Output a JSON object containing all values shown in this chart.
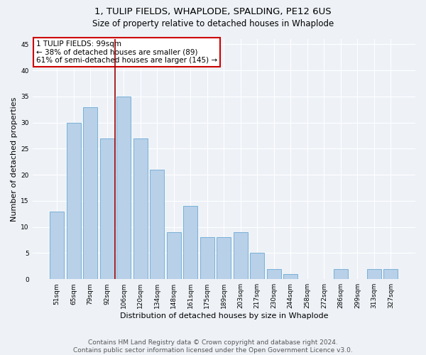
{
  "title1": "1, TULIP FIELDS, WHAPLODE, SPALDING, PE12 6US",
  "title2": "Size of property relative to detached houses in Whaplode",
  "xlabel": "Distribution of detached houses by size in Whaplode",
  "ylabel": "Number of detached properties",
  "categories": [
    "51sqm",
    "65sqm",
    "79sqm",
    "92sqm",
    "106sqm",
    "120sqm",
    "134sqm",
    "148sqm",
    "161sqm",
    "175sqm",
    "189sqm",
    "203sqm",
    "217sqm",
    "230sqm",
    "244sqm",
    "258sqm",
    "272sqm",
    "286sqm",
    "299sqm",
    "313sqm",
    "327sqm"
  ],
  "values": [
    13,
    30,
    33,
    27,
    35,
    27,
    21,
    9,
    14,
    8,
    8,
    9,
    5,
    2,
    1,
    0,
    0,
    2,
    0,
    2,
    2
  ],
  "bar_color": "#b8d0e8",
  "bar_edge_color": "#6aaad4",
  "vline_color": "#990000",
  "annotation_text": "1 TULIP FIELDS: 99sqm\n← 38% of detached houses are smaller (89)\n61% of semi-detached houses are larger (145) →",
  "annotation_box_color": "#ffffff",
  "annotation_box_edge_color": "#cc0000",
  "ylim": [
    0,
    46
  ],
  "yticks": [
    0,
    5,
    10,
    15,
    20,
    25,
    30,
    35,
    40,
    45
  ],
  "footer": "Contains HM Land Registry data © Crown copyright and database right 2024.\nContains public sector information licensed under the Open Government Licence v3.0.",
  "bg_color": "#eef2f7",
  "grid_color": "#ffffff",
  "title1_fontsize": 9.5,
  "title2_fontsize": 8.5,
  "tick_fontsize": 6.5,
  "ylabel_fontsize": 8,
  "xlabel_fontsize": 8,
  "footer_fontsize": 6.5,
  "ann_fontsize": 7.5,
  "vline_x_index": 3.5
}
